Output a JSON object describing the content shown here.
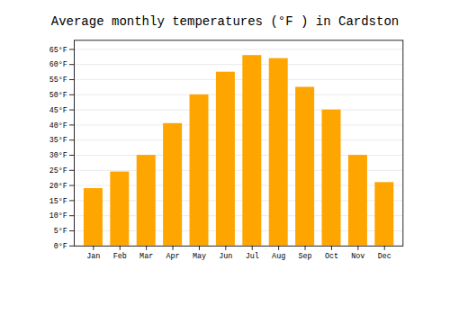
{
  "chart_data": {
    "type": "bar",
    "title": "Average monthly temperatures (°F ) in Cardston",
    "categories": [
      "Jan",
      "Feb",
      "Mar",
      "Apr",
      "May",
      "Jun",
      "Jul",
      "Aug",
      "Sep",
      "Oct",
      "Nov",
      "Dec"
    ],
    "values": [
      19,
      24.5,
      30,
      40.5,
      50,
      57.5,
      63,
      62,
      52.5,
      45,
      30,
      21
    ],
    "color": "#FFA500",
    "ylim": [
      0,
      68
    ],
    "yticks": [
      {
        "value": 0,
        "label": "0°F"
      },
      {
        "value": 5,
        "label": "5°F"
      },
      {
        "value": 10,
        "label": "10°F"
      },
      {
        "value": 15,
        "label": "15°F"
      },
      {
        "value": 20,
        "label": "20°F"
      },
      {
        "value": 25,
        "label": "25°F"
      },
      {
        "value": 30,
        "label": "30°F"
      },
      {
        "value": 35,
        "label": "35°F"
      },
      {
        "value": 40,
        "label": "40°F"
      },
      {
        "value": 45,
        "label": "45°F"
      },
      {
        "value": 50,
        "label": "50°F"
      },
      {
        "value": 55,
        "label": "55°F"
      },
      {
        "value": 60,
        "label": "60°F"
      },
      {
        "value": 65,
        "label": "65°F"
      }
    ],
    "grid": true
  }
}
